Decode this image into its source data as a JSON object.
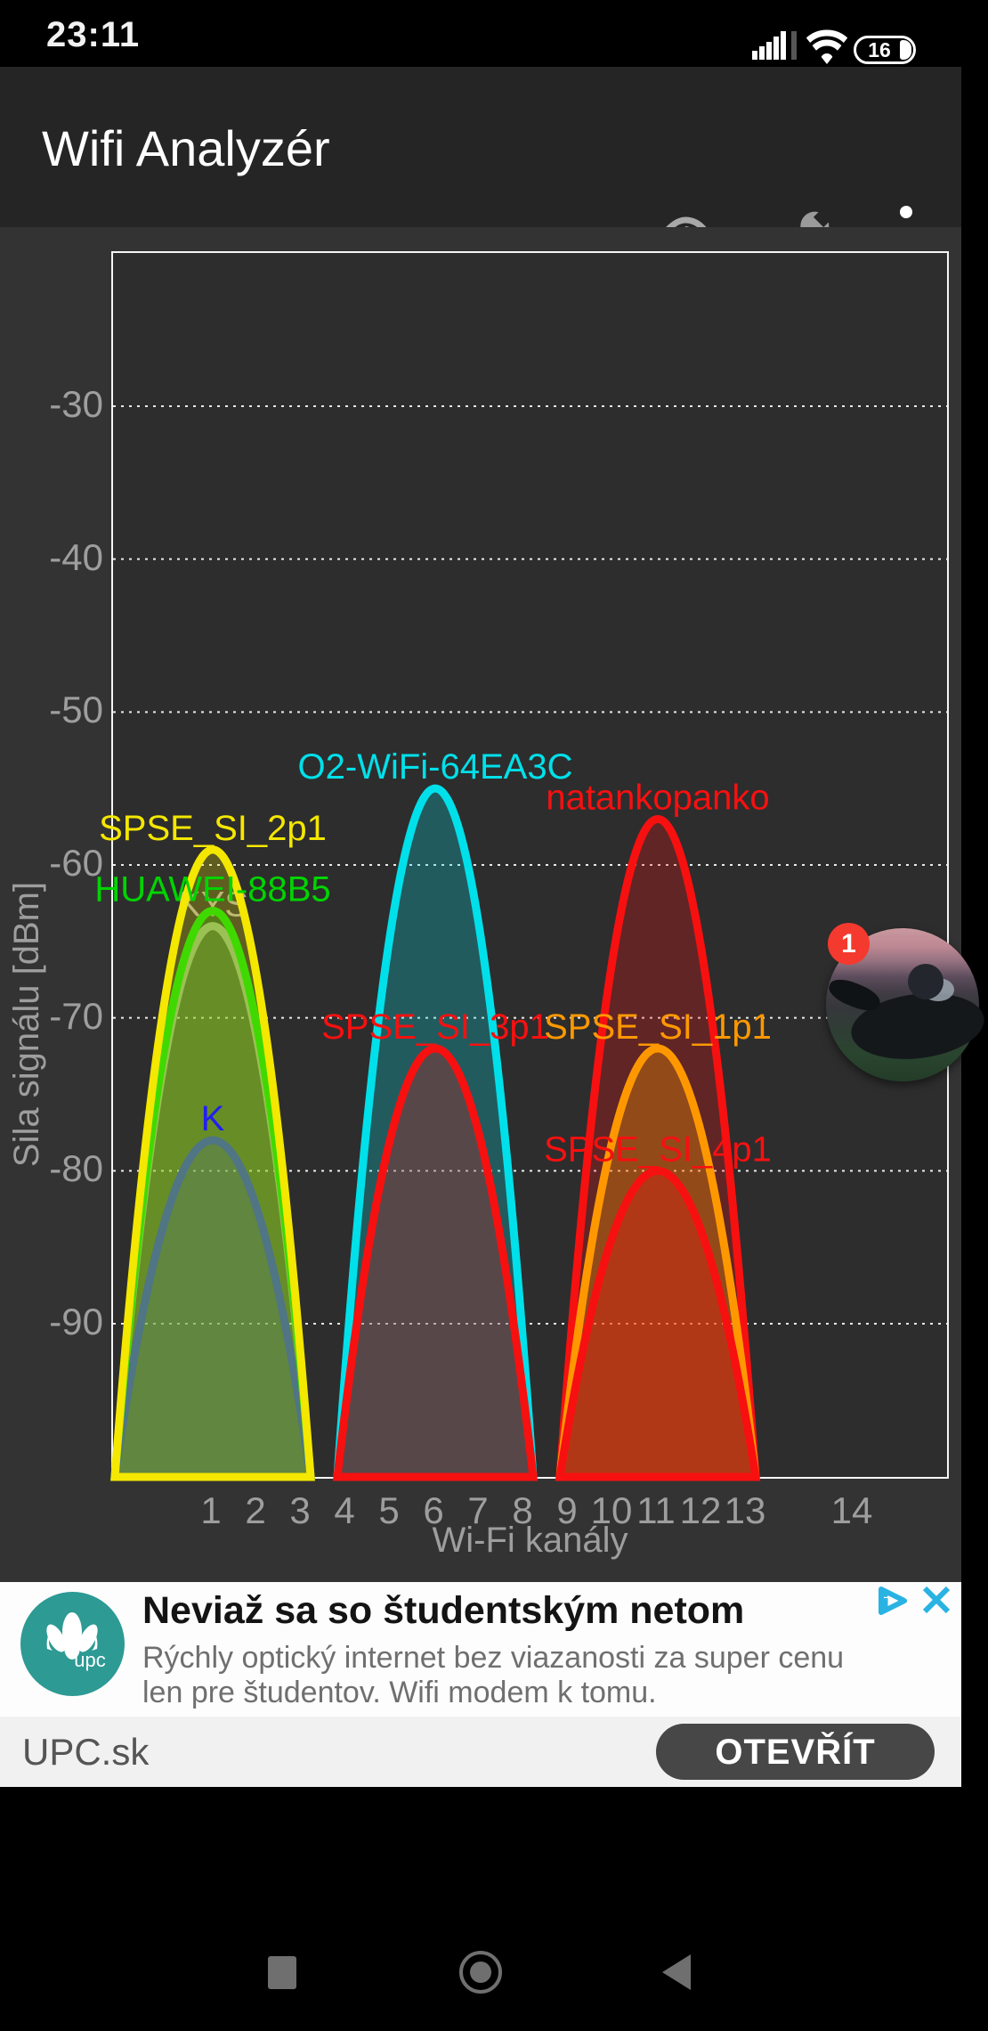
{
  "status_bar": {
    "time": "23:11",
    "battery_percent": "16"
  },
  "app_bar": {
    "title": "Wifi Analyzér",
    "icons": [
      "eye",
      "wrench",
      "overflow-menu"
    ]
  },
  "chart": {
    "y_axis_title": "Sila signálu [dBm]",
    "x_axis_title": "Wi-Fi kanály",
    "y_ticks": [
      -30,
      -40,
      -50,
      -60,
      -70,
      -80,
      -90
    ],
    "x_ticks": [
      1,
      2,
      3,
      4,
      5,
      6,
      7,
      8,
      9,
      10,
      11,
      12,
      13,
      14
    ]
  },
  "chart_data": {
    "type": "area",
    "title": "",
    "xlabel": "Wi-Fi kanály",
    "ylabel": "Sila signálu [dBm]",
    "x_range_channels": [
      1,
      14
    ],
    "y_range_dbm": [
      -100,
      -20
    ],
    "grid": "horizontal-dotted",
    "networks": [
      {
        "ssid": "KYS",
        "channel": 1,
        "signal_dbm": -64,
        "color": "#a9a99b",
        "fill_opacity": 0.25,
        "label_behind_curves": true
      },
      {
        "ssid": "K",
        "channel": 1,
        "signal_dbm": -78,
        "color": "#2020f0",
        "fill_opacity": 0.26
      },
      {
        "ssid": "HUAWEI-88B5",
        "channel": 1,
        "signal_dbm": -63,
        "color": "#00d400",
        "fill_opacity": 0.26
      },
      {
        "ssid": "SPSE_SI_2p1",
        "channel": 1,
        "signal_dbm": -59,
        "color": "#f4e700",
        "fill_opacity": 0.26
      },
      {
        "ssid": "O2-WiFi-64EA3C",
        "channel": 6,
        "signal_dbm": -55,
        "color": "#00e0ea",
        "fill_opacity": 0.26
      },
      {
        "ssid": "SPSE_SI_3p1",
        "channel": 6,
        "signal_dbm": -72,
        "color": "#f71010",
        "fill_opacity": 0.26
      },
      {
        "ssid": "natankopanko",
        "channel": 11,
        "signal_dbm": -57,
        "color": "#f71010",
        "fill_opacity": 0.26
      },
      {
        "ssid": "SPSE_SI_1p1",
        "channel": 11,
        "signal_dbm": -72,
        "color": "#ff9800",
        "fill_opacity": 0.32
      },
      {
        "ssid": "SPSE_SI_4p1",
        "channel": 11,
        "signal_dbm": -80,
        "color": "#f71010",
        "fill_opacity": 0.3
      }
    ]
  },
  "overlay": {
    "badge_count": "1"
  },
  "ad": {
    "headline": "Neviaž sa so študentským netom",
    "body": "Rýchly optický internet bez viazanosti za super cenu len pre študentov. Wifi modem k tomu.",
    "advertiser": "UPC.sk",
    "cta": "OTEVŘÍT",
    "logo_text": "upc",
    "logo_color": "#2d9a94",
    "adchoices_color": "#29b3e3"
  },
  "nav": {
    "items": [
      "recents",
      "home",
      "back"
    ]
  }
}
